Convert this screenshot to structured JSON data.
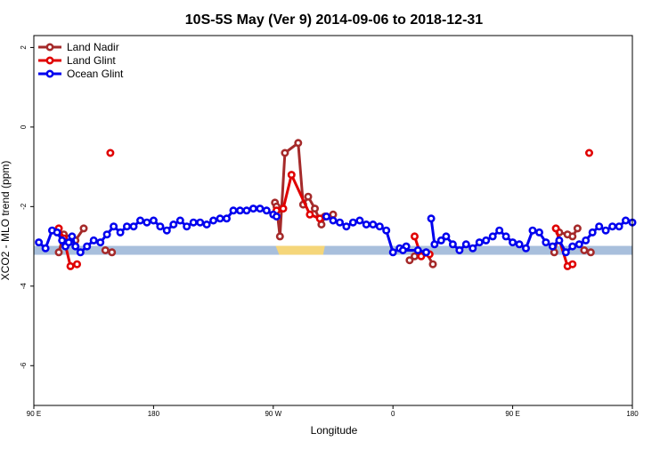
{
  "chart_data": {
    "type": "line",
    "title": "10S-5S May (Ver 9)   2014-09-06 to 2018-12-31",
    "xlabel": "Longitude",
    "ylabel": "XCO2 - MLO trend (ppm)",
    "xlim": [
      90,
      450
    ],
    "ylim": [
      -7.0,
      2.3
    ],
    "x_ticks": [
      {
        "value": 90,
        "label": "90 E"
      },
      {
        "value": 162,
        "label": "180"
      },
      {
        "value": 234,
        "label": "90 W"
      },
      {
        "value": 306,
        "label": "0"
      },
      {
        "value": 378,
        "label": "90 E"
      },
      {
        "value": 450,
        "label": "180"
      }
    ],
    "y_ticks": [
      {
        "value": 2,
        "label": "2"
      },
      {
        "value": 0,
        "label": "0"
      },
      {
        "value": -2,
        "label": "-2"
      },
      {
        "value": -4,
        "label": "-4"
      },
      {
        "value": -6,
        "label": "-6"
      }
    ],
    "legend_position": "top-left",
    "land_band": {
      "y": -3.1,
      "base_color": "#a8bfdc",
      "highlight_color": "#f5d67a",
      "highlight_range": [
        236.5,
        264
      ]
    },
    "series": [
      {
        "name": "Land Nadir",
        "color": "#a52a2a",
        "segments": [
          {
            "x": [
              105,
              108,
              111,
              115,
              120
            ],
            "y": [
              -3.15,
              -2.7,
              -2.8,
              -2.85,
              -2.55
            ]
          },
          {
            "x": [
              133,
              137
            ],
            "y": [
              -3.1,
              -3.15
            ]
          },
          {
            "x": [
              235,
              236,
              238,
              241,
              249,
              252,
              255,
              259,
              263,
              265,
              270
            ],
            "y": [
              -1.9,
              -2.0,
              -2.75,
              -0.65,
              -0.4,
              -1.95,
              -1.75,
              -2.05,
              -2.45,
              -2.25,
              -2.2
            ]
          },
          {
            "x": [
              316,
              319,
              326,
              330
            ],
            "y": [
              -3.35,
              -3.25,
              -3.15,
              -3.45
            ]
          },
          {
            "x": [
              403,
              406,
              411,
              414,
              417
            ],
            "y": [
              -3.15,
              -2.65,
              -2.7,
              -2.75,
              -2.55
            ]
          },
          {
            "x": [
              421,
              425
            ],
            "y": [
              -3.1,
              -3.15
            ]
          }
        ]
      },
      {
        "name": "Land Glint",
        "color": "#e00000",
        "segments": [
          {
            "x": [
              105,
              108,
              112,
              116
            ],
            "y": [
              -2.55,
              -2.8,
              -3.5,
              -3.45
            ]
          },
          {
            "x": [
              136
            ],
            "y": [
              -0.65
            ]
          },
          {
            "x": [
              236,
              240,
              245,
              256,
              262,
              266
            ],
            "y": [
              -2.1,
              -2.05,
              -1.2,
              -2.2,
              -2.3,
              -2.25
            ]
          },
          {
            "x": [
              319,
              323,
              328
            ],
            "y": [
              -2.75,
              -3.25,
              -3.2
            ]
          },
          {
            "x": [
              404,
              411,
              414
            ],
            "y": [
              -2.55,
              -3.5,
              -3.45
            ]
          },
          {
            "x": [
              424
            ],
            "y": [
              -0.65
            ]
          }
        ]
      },
      {
        "name": "Ocean Glint",
        "color": "#0000ee",
        "segments": [
          {
            "x": [
              93,
              97,
              101,
              104,
              107,
              109,
              111,
              113,
              115,
              118,
              122,
              126,
              130,
              134,
              138,
              142,
              146,
              150,
              154,
              158,
              162,
              166,
              170,
              174,
              178,
              182,
              186,
              190,
              194,
              198,
              202,
              206,
              210,
              214,
              218,
              222,
              226,
              230,
              234,
              236
            ],
            "y": [
              -2.9,
              -3.05,
              -2.6,
              -2.65,
              -2.85,
              -3.0,
              -2.9,
              -2.75,
              -3.0,
              -3.15,
              -3.0,
              -2.85,
              -2.9,
              -2.7,
              -2.5,
              -2.65,
              -2.5,
              -2.5,
              -2.35,
              -2.4,
              -2.35,
              -2.5,
              -2.6,
              -2.45,
              -2.35,
              -2.5,
              -2.4,
              -2.4,
              -2.45,
              -2.35,
              -2.3,
              -2.3,
              -2.1,
              -2.1,
              -2.1,
              -2.05,
              -2.05,
              -2.1,
              -2.2,
              -2.25
            ]
          },
          {
            "x": [
              266,
              270,
              274,
              278,
              282,
              286,
              290,
              294,
              298,
              302,
              306,
              310,
              314
            ],
            "y": [
              -2.25,
              -2.35,
              -2.4,
              -2.5,
              -2.4,
              -2.35,
              -2.45,
              -2.45,
              -2.5,
              -2.6,
              -3.15,
              -3.05,
              -3.0
            ]
          },
          {
            "x": [
              312,
              321,
              326
            ],
            "y": [
              -3.1,
              -3.1,
              -3.15
            ]
          },
          {
            "x": [
              329,
              331,
              335,
              338,
              342,
              346,
              350,
              354,
              358,
              362,
              366,
              370,
              374,
              378,
              382,
              386,
              390,
              394,
              398,
              402,
              406,
              410,
              414,
              418,
              422,
              426,
              430,
              434,
              438,
              442,
              446,
              450
            ],
            "y": [
              -2.3,
              -2.95,
              -2.85,
              -2.75,
              -2.95,
              -3.1,
              -2.95,
              -3.05,
              -2.9,
              -2.85,
              -2.75,
              -2.6,
              -2.75,
              -2.9,
              -2.95,
              -3.05,
              -2.6,
              -2.65,
              -2.9,
              -3.0,
              -2.85,
              -3.15,
              -3.0,
              -2.95,
              -2.85,
              -2.65,
              -2.5,
              -2.6,
              -2.5,
              -2.5,
              -2.35,
              -2.4
            ]
          }
        ]
      }
    ]
  }
}
